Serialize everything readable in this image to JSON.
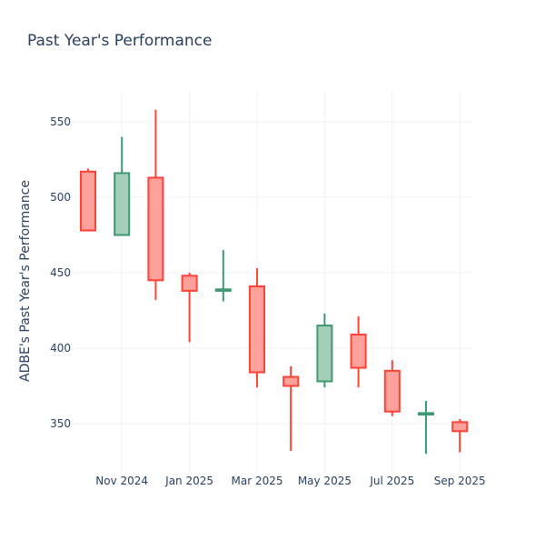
{
  "chart_data": {
    "type": "candlestick",
    "title": "Past Year's Performance",
    "xlabel": "",
    "ylabel": "ADBE's Past Year's Performance",
    "ylim": [
      320,
      570
    ],
    "y_ticks": [
      350,
      400,
      450,
      500,
      550
    ],
    "x_ticks": [
      "Nov 2024",
      "Jan 2025",
      "Mar 2025",
      "May 2025",
      "Jul 2025",
      "Sep 2025"
    ],
    "grid": true,
    "colors": {
      "increasing_line": "#3d9970",
      "increasing_fill": "#a3cfb8",
      "decreasing_line": "#ff4136",
      "decreasing_fill": "#ffa09b"
    },
    "candles": [
      {
        "period": "2024-10",
        "open": 517,
        "high": 519,
        "low": 478,
        "close": 478
      },
      {
        "period": "2024-11",
        "open": 475,
        "high": 540,
        "low": 475,
        "close": 516
      },
      {
        "period": "2024-12",
        "open": 513,
        "high": 558,
        "low": 432,
        "close": 445
      },
      {
        "period": "2025-01",
        "open": 448,
        "high": 450,
        "low": 404,
        "close": 438
      },
      {
        "period": "2025-02",
        "open": 438,
        "high": 465,
        "low": 431,
        "close": 439
      },
      {
        "period": "2025-03",
        "open": 441,
        "high": 453,
        "low": 374,
        "close": 384
      },
      {
        "period": "2025-04",
        "open": 381,
        "high": 388,
        "low": 332,
        "close": 375
      },
      {
        "period": "2025-05",
        "open": 378,
        "high": 423,
        "low": 374,
        "close": 415
      },
      {
        "period": "2025-06",
        "open": 409,
        "high": 421,
        "low": 374,
        "close": 387
      },
      {
        "period": "2025-07",
        "open": 385,
        "high": 392,
        "low": 355,
        "close": 358
      },
      {
        "period": "2025-08",
        "open": 356,
        "high": 365,
        "low": 330,
        "close": 357
      },
      {
        "period": "2025-09",
        "open": 351,
        "high": 353,
        "low": 331,
        "close": 345
      }
    ]
  }
}
